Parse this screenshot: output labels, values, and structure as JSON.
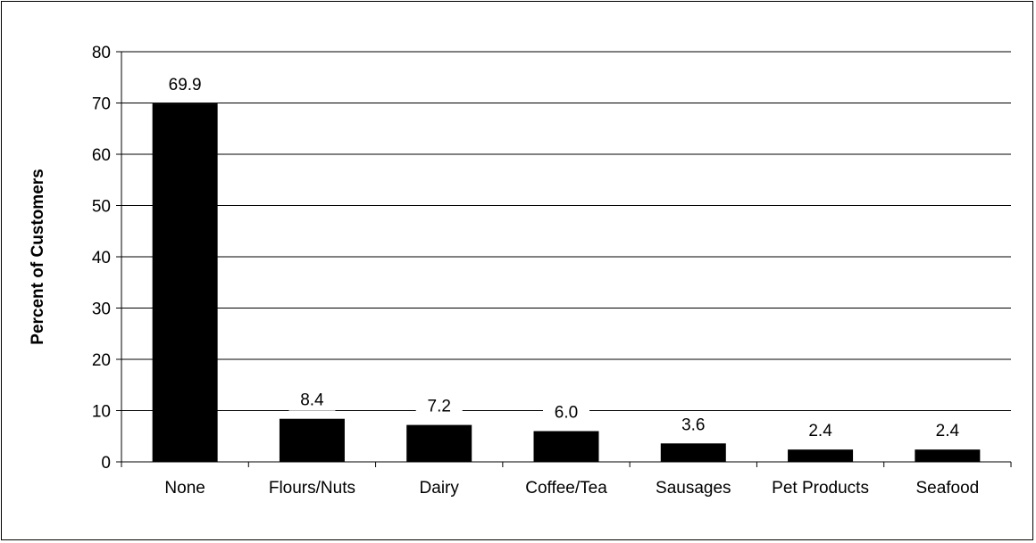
{
  "chart_data": {
    "type": "bar",
    "categories": [
      "None",
      "Flours/Nuts",
      "Dairy",
      "Coffee/Tea",
      "Sausages",
      "Pet Products",
      "Seafood"
    ],
    "values": [
      69.9,
      8.4,
      7.2,
      6.0,
      3.6,
      2.4,
      2.4
    ],
    "data_labels": [
      "69.9",
      "8.4",
      "7.2",
      "6.0",
      "3.6",
      "2.4",
      "2.4"
    ],
    "title": "",
    "xlabel": "",
    "ylabel": "Percent of Customers",
    "ylim": [
      0,
      80
    ],
    "yticks": [
      0,
      10,
      20,
      30,
      40,
      50,
      60,
      70,
      80
    ],
    "grid": true,
    "legend": "none",
    "colors": {
      "bar": "#000000",
      "grid": "#000000",
      "background": "#ffffff"
    }
  }
}
